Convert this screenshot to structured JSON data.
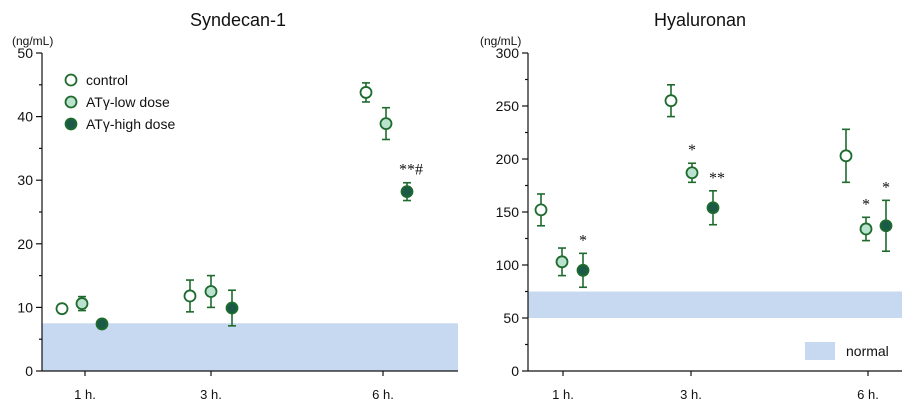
{
  "colors": {
    "control_fill": "#ffffff",
    "low_fill": "#b9e3cf",
    "high_fill": "#1c5a48",
    "marker_edge": "#1f6b2e",
    "normal_band": "#c7d9f0"
  },
  "chart_data": [
    {
      "type": "scatter",
      "title": "Syndecan-1",
      "ylabel": "(ng/mL)",
      "ylim": [
        0,
        50
      ],
      "yticks": [
        0,
        10,
        20,
        30,
        40,
        50
      ],
      "categories": [
        "1 h.",
        "3 h.",
        "6 h."
      ],
      "normal_range": [
        0,
        7.5
      ],
      "legend": [
        "control",
        "ATγ-low dose",
        "ATγ-high dose"
      ],
      "legend_position": "top-left",
      "series": [
        {
          "name": "control",
          "values": [
            9.8,
            11.8,
            43.8
          ],
          "errors": [
            0.6,
            2.5,
            1.5
          ]
        },
        {
          "name": "ATγ-low dose",
          "values": [
            10.6,
            12.5,
            38.9
          ],
          "errors": [
            1.1,
            2.5,
            2.5
          ]
        },
        {
          "name": "ATγ-high dose",
          "values": [
            7.4,
            9.9,
            28.2
          ],
          "errors": [
            0.4,
            2.8,
            1.4
          ]
        }
      ],
      "annotations": [
        {
          "category": "6 h.",
          "series": "ATγ-high dose",
          "text": "**#"
        }
      ]
    },
    {
      "type": "scatter",
      "title": "Hyaluronan",
      "ylabel": "(ng/mL)",
      "ylim": [
        0,
        300
      ],
      "yticks": [
        0,
        50,
        100,
        150,
        200,
        250,
        300
      ],
      "categories": [
        "1 h.",
        "3 h.",
        "6 h."
      ],
      "normal_range": [
        50,
        75
      ],
      "legend": [
        "normal"
      ],
      "legend_position": "bottom-right",
      "series": [
        {
          "name": "control",
          "values": [
            152,
            255,
            203
          ],
          "errors": [
            15,
            15,
            25
          ]
        },
        {
          "name": "ATγ-low dose",
          "values": [
            103,
            187,
            134
          ],
          "errors": [
            13,
            9,
            11
          ]
        },
        {
          "name": "ATγ-high dose",
          "values": [
            95,
            154,
            137
          ],
          "errors": [
            16,
            16,
            24
          ]
        }
      ],
      "annotations": [
        {
          "category": "1 h.",
          "series": "ATγ-high dose",
          "text": "*"
        },
        {
          "category": "3 h.",
          "series": "ATγ-low dose",
          "text": "*"
        },
        {
          "category": "3 h.",
          "series": "ATγ-high dose",
          "text": "**"
        },
        {
          "category": "6 h.",
          "series": "ATγ-low dose",
          "text": "*"
        },
        {
          "category": "6 h.",
          "series": "ATγ-high dose",
          "text": "*"
        }
      ]
    }
  ]
}
